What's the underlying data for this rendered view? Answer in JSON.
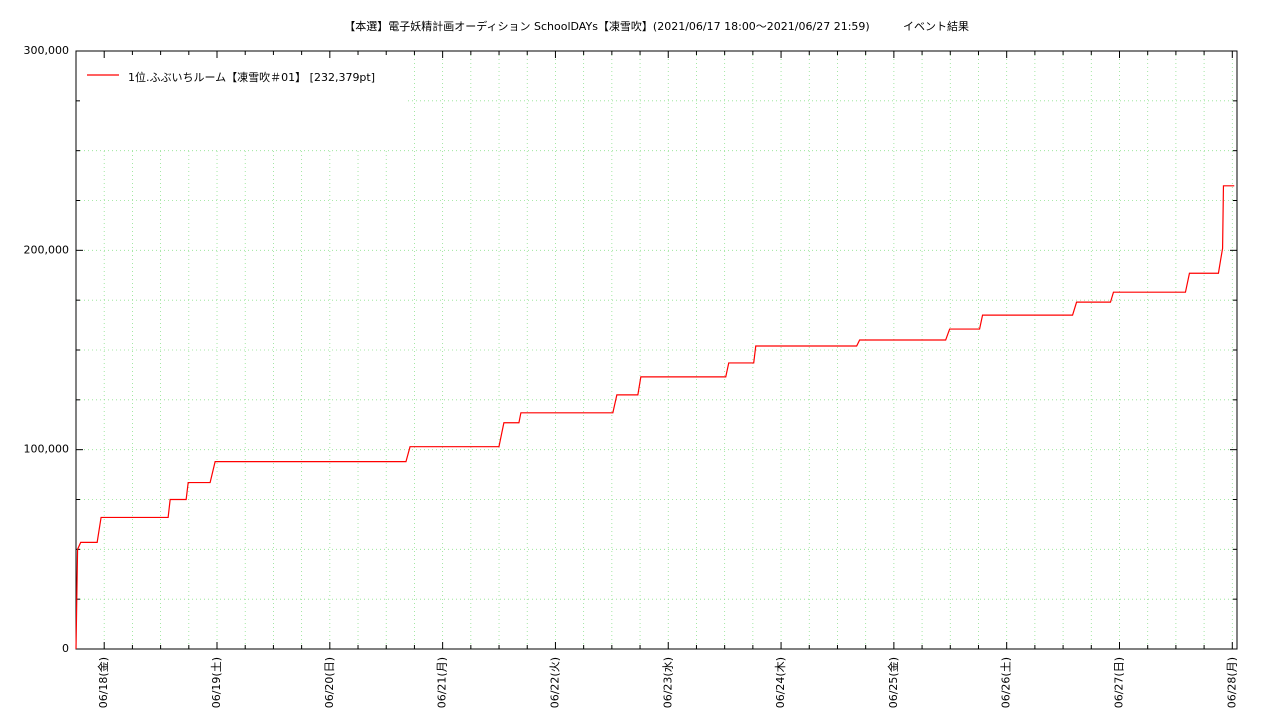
{
  "chart_data": {
    "type": "line",
    "title": "【本選】電子妖精計画オーディション SchoolDAYs【凍雪吹】(2021/06/17 18:00～2021/06/27 21:59)",
    "subtitle": "イベント結果",
    "grid": true,
    "legend": "upper left",
    "xlim": [
      "06/17 18:00",
      "06/28 01:00"
    ],
    "xticks": [
      {
        "value": "06/18 00:00",
        "label": "06/18(金)"
      },
      {
        "value": "06/19 00:00",
        "label": "06/19(土)"
      },
      {
        "value": "06/20 00:00",
        "label": "06/20(日)"
      },
      {
        "value": "06/21 00:00",
        "label": "06/21(月)"
      },
      {
        "value": "06/22 00:00",
        "label": "06/22(火)"
      },
      {
        "value": "06/23 00:00",
        "label": "06/23(水)"
      },
      {
        "value": "06/24 00:00",
        "label": "06/24(木)"
      },
      {
        "value": "06/25 00:00",
        "label": "06/25(金)"
      },
      {
        "value": "06/26 00:00",
        "label": "06/26(土)"
      },
      {
        "value": "06/27 00:00",
        "label": "06/27(日)"
      },
      {
        "value": "06/28 00:00",
        "label": "06/28(月)"
      }
    ],
    "xminorticks": [
      "06/18 06:00",
      "06/18 12:00",
      "06/18 18:00",
      "06/19 06:00",
      "06/19 12:00",
      "06/19 18:00",
      "06/20 06:00",
      "06/20 12:00",
      "06/20 18:00",
      "06/21 06:00",
      "06/21 12:00",
      "06/21 18:00",
      "06/22 06:00",
      "06/22 12:00",
      "06/22 18:00",
      "06/23 06:00",
      "06/23 12:00",
      "06/23 18:00",
      "06/24 06:00",
      "06/24 12:00",
      "06/24 18:00",
      "06/25 06:00",
      "06/25 12:00",
      "06/25 18:00",
      "06/26 06:00",
      "06/26 12:00",
      "06/26 18:00",
      "06/27 06:00",
      "06/27 12:00",
      "06/27 18:00"
    ],
    "ylim": [
      0,
      300000
    ],
    "yticks": [
      0,
      {
        "value": 100000,
        "label": "100,000"
      },
      {
        "value": 200000,
        "label": "200,000"
      },
      {
        "value": 300000,
        "label": "300,000"
      }
    ],
    "yminorticks": [
      25000,
      50000,
      75000,
      125000,
      150000,
      175000,
      225000,
      250000,
      275000
    ],
    "x": [
      "06/17 18:00",
      "06/17 18:10",
      "06/17 18:20",
      "06/17 19:00",
      "06/17 22:30",
      "06/17 23:20",
      "06/18 13:36",
      "06/18 14:02",
      "06/18 17:26",
      "06/18 17:52",
      "06/18 22:32",
      "06/18 23:36",
      "06/20 16:12",
      "06/20 17:04",
      "06/21 11:59",
      "06/21 13:02",
      "06/21 16:14",
      "06/21 16:39",
      "06/22 12:13",
      "06/22 13:04",
      "06/22 17:32",
      "06/22 18:10",
      "06/23 12:14",
      "06/23 12:52",
      "06/23 18:11",
      "06/23 18:37",
      "06/24 16:05",
      "06/24 16:43",
      "06/25 11:01",
      "06/25 11:52",
      "06/25 18:14",
      "06/25 18:52",
      "06/26 14:01",
      "06/26 14:52",
      "06/26 22:05",
      "06/26 22:43",
      "06/27 14:02",
      "06/27 14:53",
      "06/27 21:03",
      "06/27 21:30",
      "06/27 21:56",
      "06/27 22:07",
      "06/28 00:25"
    ],
    "series": [
      {
        "name": "1位.ふぶいちルーム【凍雪吹＃01】 [232,379pt]",
        "color": "#ff0000",
        "values": [
          0,
          25000,
          50000,
          53500,
          53500,
          66000,
          66000,
          75000,
          75000,
          83500,
          83500,
          94000,
          94000,
          101500,
          101500,
          113500,
          113500,
          118500,
          118500,
          127500,
          127500,
          136500,
          136500,
          143500,
          143500,
          152000,
          152000,
          155000,
          155000,
          160500,
          160500,
          167500,
          167500,
          174000,
          174000,
          179000,
          179000,
          188500,
          188500,
          195000,
          201000,
          232379,
          232379
        ]
      }
    ]
  }
}
